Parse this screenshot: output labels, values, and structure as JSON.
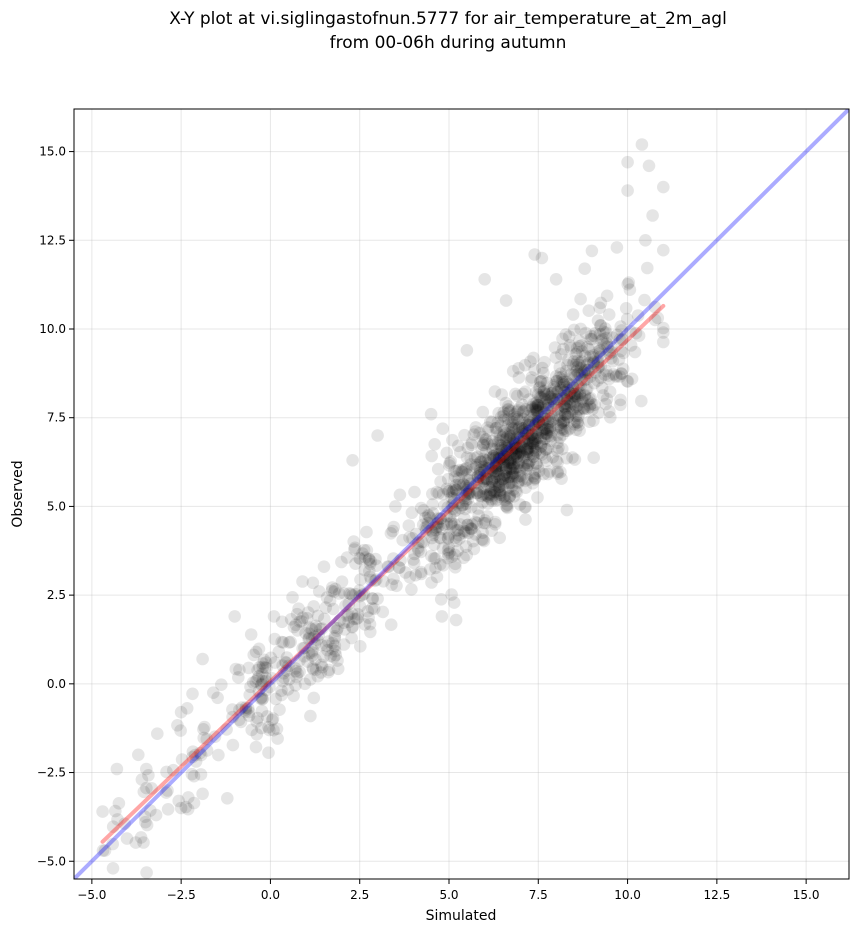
{
  "chart_data": {
    "type": "scatter",
    "title": "X-Y plot at vi.siglingastofnun.5777 for air_temperature_at_2m_agl\nfrom 00-06h during autumn",
    "xlabel": "Simulated",
    "ylabel": "Observed",
    "xlim": [
      -5.5,
      16.2
    ],
    "ylim": [
      -5.5,
      16.2
    ],
    "xticks": [
      -5.0,
      -2.5,
      0.0,
      2.5,
      5.0,
      7.5,
      10.0,
      12.5,
      15.0
    ],
    "yticks": [
      -5.0,
      -2.5,
      0.0,
      2.5,
      5.0,
      7.5,
      10.0,
      12.5,
      15.0
    ],
    "xtick_labels": [
      "−5.0",
      "−2.5",
      "0.0",
      "2.5",
      "5.0",
      "7.5",
      "10.0",
      "12.5",
      "15.0"
    ],
    "ytick_labels": [
      "−5.0",
      "−2.5",
      "0.0",
      "2.5",
      "5.0",
      "7.5",
      "10.0",
      "12.5",
      "15.0"
    ],
    "grid": true,
    "marker_color": "#000000",
    "marker_alpha": 0.1,
    "point_count": 1400,
    "points_sample": [
      [
        -4.7,
        -3.6
      ],
      [
        -4.3,
        -2.4
      ],
      [
        -3.7,
        -2.0
      ],
      [
        -3.6,
        -2.7
      ],
      [
        -3.5,
        -3.9
      ],
      [
        -3.2,
        -3.7
      ],
      [
        -2.5,
        -3.5
      ],
      [
        -2.3,
        -3.2
      ],
      [
        -1.9,
        -3.1
      ],
      [
        -2.5,
        -0.8
      ],
      [
        -1.9,
        0.7
      ],
      [
        -1.0,
        1.9
      ],
      [
        -0.4,
        0.9
      ],
      [
        0.1,
        1.9
      ],
      [
        0.9,
        1.0
      ],
      [
        1.5,
        3.3
      ],
      [
        2.1,
        2.2
      ],
      [
        2.3,
        6.3
      ],
      [
        3.0,
        7.0
      ],
      [
        3.5,
        5.0
      ],
      [
        4.5,
        7.6
      ],
      [
        4.8,
        1.9
      ],
      [
        5.2,
        1.8
      ],
      [
        5.5,
        9.4
      ],
      [
        6.0,
        11.4
      ],
      [
        6.6,
        10.8
      ],
      [
        7.4,
        12.1
      ],
      [
        7.6,
        12.0
      ],
      [
        8.0,
        11.4
      ],
      [
        8.3,
        4.9
      ],
      [
        8.8,
        11.7
      ],
      [
        9.0,
        12.2
      ],
      [
        9.7,
        12.3
      ],
      [
        10.0,
        14.7
      ],
      [
        10.0,
        13.9
      ],
      [
        10.4,
        15.2
      ],
      [
        10.5,
        12.5
      ],
      [
        10.6,
        14.6
      ],
      [
        10.7,
        13.2
      ],
      [
        11.0,
        14.0
      ],
      [
        11.0,
        9.9
      ],
      [
        6.9,
        5.4
      ],
      [
        7.5,
        7.7
      ],
      [
        6.3,
        6.1
      ],
      [
        5.0,
        4.2
      ],
      [
        4.0,
        3.5
      ],
      [
        3.0,
        2.4
      ],
      [
        7.9,
        8.2
      ],
      [
        8.5,
        8.7
      ],
      [
        9.5,
        9.3
      ]
    ],
    "series": [
      {
        "name": "",
        "color": "#ff0000",
        "alpha": 0.35,
        "points": [
          [
            -4.7,
            -4.45
          ],
          [
            11.0,
            10.65
          ]
        ]
      },
      {
        "name": "",
        "color": "#0000ff",
        "alpha": 0.33,
        "points": [
          [
            -5.5,
            -5.5
          ],
          [
            16.2,
            16.2
          ]
        ]
      }
    ]
  }
}
